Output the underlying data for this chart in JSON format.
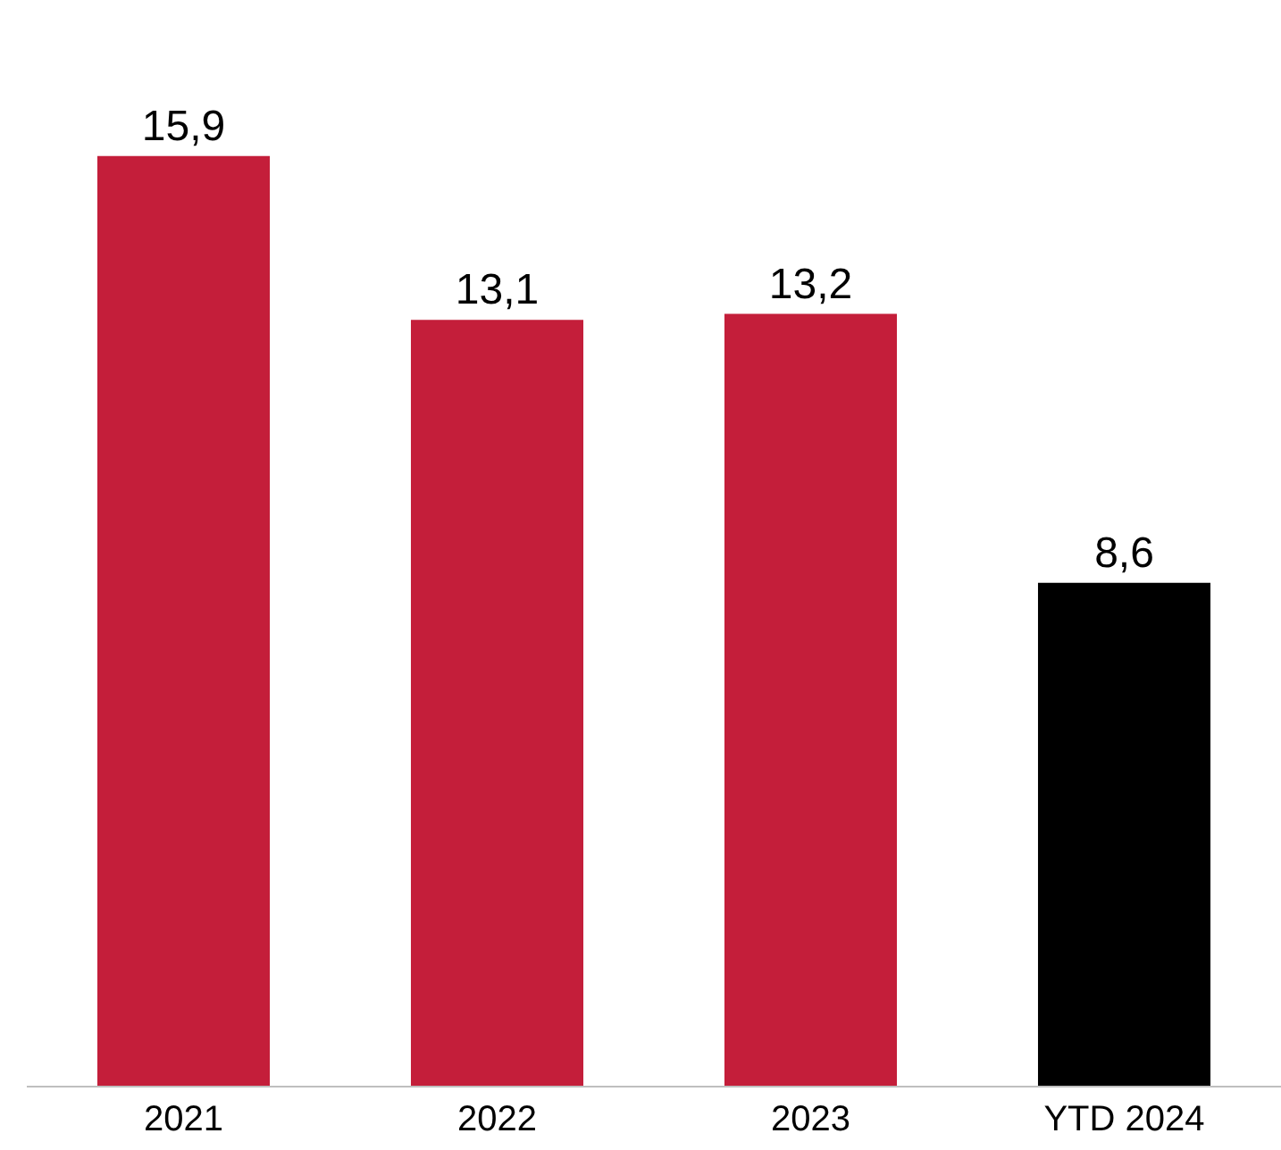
{
  "chart_data": {
    "type": "bar",
    "categories": [
      "2021",
      "2022",
      "2023",
      "YTD 2024"
    ],
    "values": [
      15.9,
      13.1,
      13.2,
      8.6
    ],
    "value_labels": [
      "15,9",
      "13,1",
      "13,2",
      "8,6"
    ],
    "colors": [
      "#c41e3a",
      "#c41e3a",
      "#c41e3a",
      "#000000"
    ],
    "grid": false,
    "legend": false
  }
}
